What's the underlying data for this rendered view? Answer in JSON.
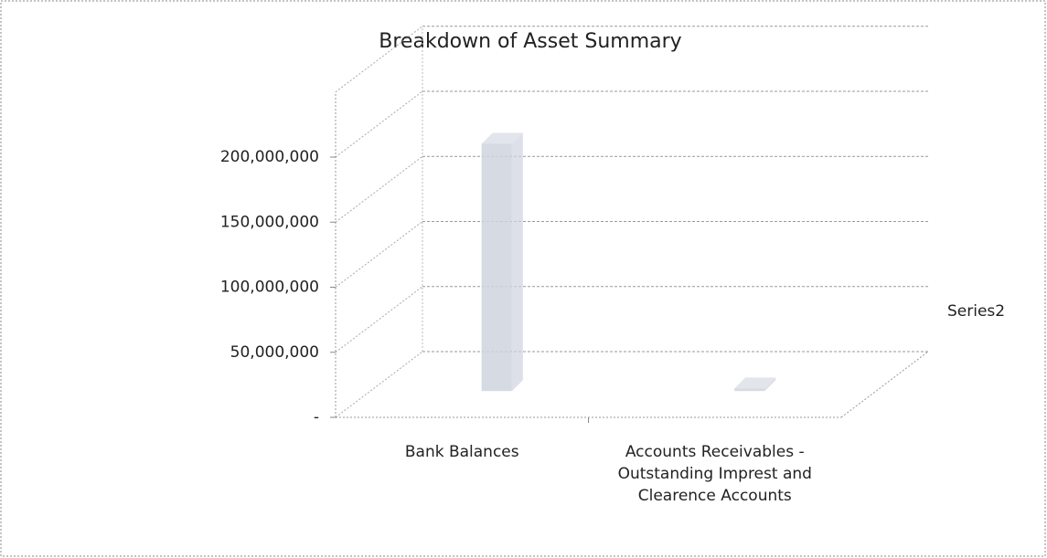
{
  "chart_data": {
    "type": "bar3d",
    "title": "Breakdown of  Asset Summary",
    "categories": [
      "Bank Balances",
      "Accounts Receivables - Outstanding Imprest and Clearence Accounts"
    ],
    "series": [
      {
        "name": "Series2",
        "color": "#cfd3de",
        "values": [
          190000000,
          2000000
        ]
      }
    ],
    "ylim": [
      0,
      250000000
    ],
    "yticks": [
      {
        "value": 0,
        "label": "-"
      },
      {
        "value": 50000000,
        "label": "50,000,000"
      },
      {
        "value": 100000000,
        "label": "100,000,000"
      },
      {
        "value": 150000000,
        "label": "150,000,000"
      },
      {
        "value": 200000000,
        "label": "200,000,000"
      }
    ],
    "grid": true,
    "legend": "right"
  }
}
